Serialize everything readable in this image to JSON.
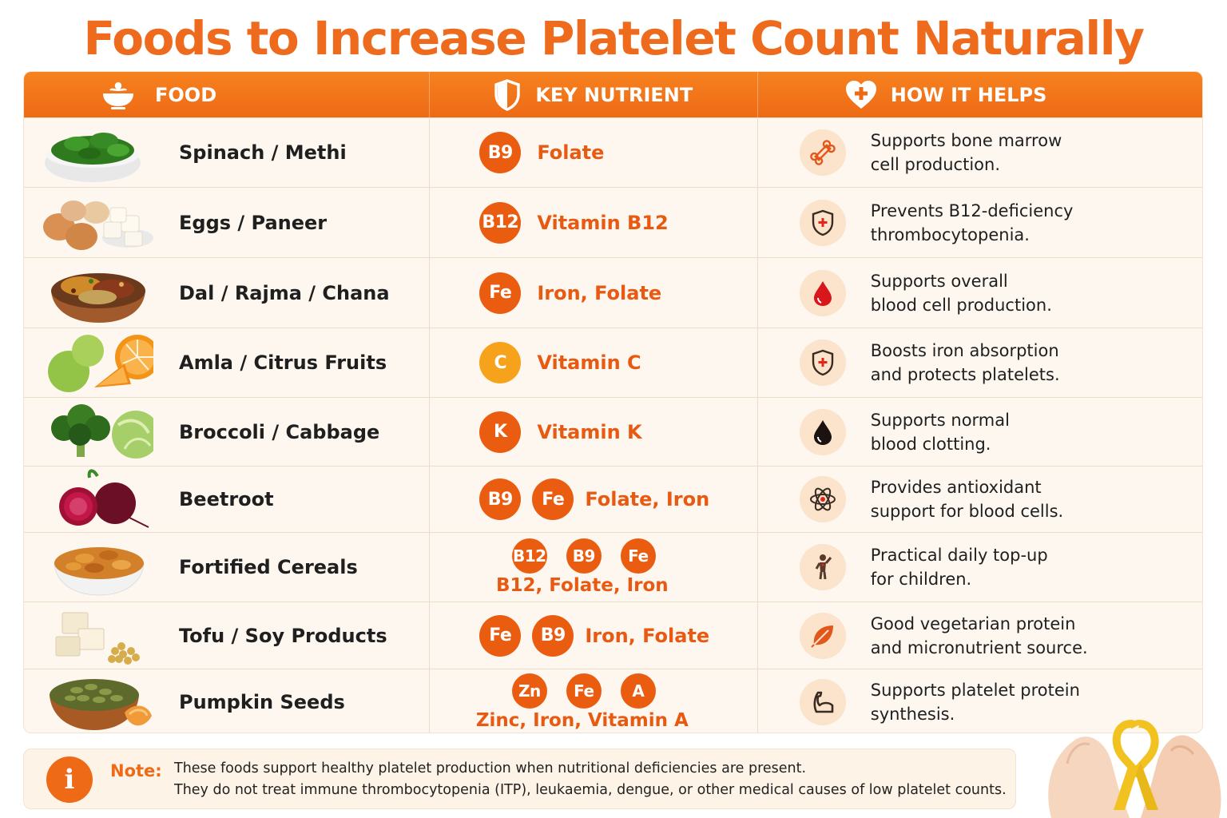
{
  "title": "Foods to Increase Platelet Count Naturally",
  "headers": {
    "food": "FOOD",
    "nutrient": "KEY NUTRIENT",
    "helps": "HOW IT HELPS"
  },
  "colors": {
    "accent": "#ee6a16",
    "badge": "#ea5d10",
    "badge_yellow": "#f7a21b",
    "row_bg": "#fdf7ef"
  },
  "rows": [
    {
      "food": "Spinach / Methi",
      "badges": [
        "B9"
      ],
      "nutrient": "Folate",
      "help1": "Supports bone marrow",
      "help2": "cell production.",
      "icon": "bone-icon",
      "image": "spinach-bowl"
    },
    {
      "food": "Eggs / Paneer",
      "badges": [
        "B12"
      ],
      "nutrient": "Vitamin B12",
      "help1": "Prevents B12-deficiency",
      "help2": "thrombocytopenia.",
      "icon": "shield-plus-icon",
      "image": "eggs-paneer"
    },
    {
      "food": "Dal / Rajma / Chana",
      "badges": [
        "Fe"
      ],
      "nutrient": "Iron, Folate",
      "help1": "Supports overall",
      "help2": "blood cell production.",
      "icon": "blood-drop-icon",
      "image": "legumes-bowl"
    },
    {
      "food": "Amla / Citrus Fruits",
      "badges": [
        "C"
      ],
      "nutrient": "Vitamin C",
      "help1": "Boosts iron absorption",
      "help2": "and protects platelets.",
      "icon": "shield-plus-icon",
      "image": "amla-orange"
    },
    {
      "food": "Broccoli / Cabbage",
      "badges": [
        "K"
      ],
      "nutrient": "Vitamin K",
      "help1": "Supports normal",
      "help2": "blood clotting.",
      "icon": "dark-drop-icon",
      "image": "broccoli-cabbage"
    },
    {
      "food": "Beetroot",
      "badges": [
        "B9",
        "Fe"
      ],
      "nutrient": "Folate, Iron",
      "help1": "Provides antioxidant",
      "help2": "support for blood cells.",
      "icon": "atom-icon",
      "image": "beetroot"
    },
    {
      "food": "Fortified Cereals",
      "badges": [
        "B12",
        "B9",
        "Fe"
      ],
      "nutrient": "B12, Folate, Iron",
      "help1": "Practical daily top-up",
      "help2": "for children.",
      "icon": "child-icon",
      "image": "cereal-bowl"
    },
    {
      "food": "Tofu / Soy Products",
      "badges": [
        "Fe",
        "B9"
      ],
      "nutrient": "Iron, Folate",
      "help1": "Good vegetarian protein",
      "help2": "and micronutrient source.",
      "icon": "leaf-icon",
      "image": "tofu-soy"
    },
    {
      "food": "Pumpkin Seeds",
      "badges": [
        "Zn",
        "Fe",
        "A"
      ],
      "nutrient": "Zinc, Iron, Vitamin A",
      "help1": "Supports platelet protein",
      "help2": "synthesis.",
      "icon": "muscle-icon",
      "image": "pumpkin-seeds"
    }
  ],
  "note": {
    "label": "Note:",
    "line1": "These foods support healthy platelet production when nutritional deficiencies are present.",
    "line2": "They do not treat immune thrombocytopenia (ITP), leukaemia, dengue, or other medical causes of low platelet counts.",
    "icon": "info-icon"
  }
}
